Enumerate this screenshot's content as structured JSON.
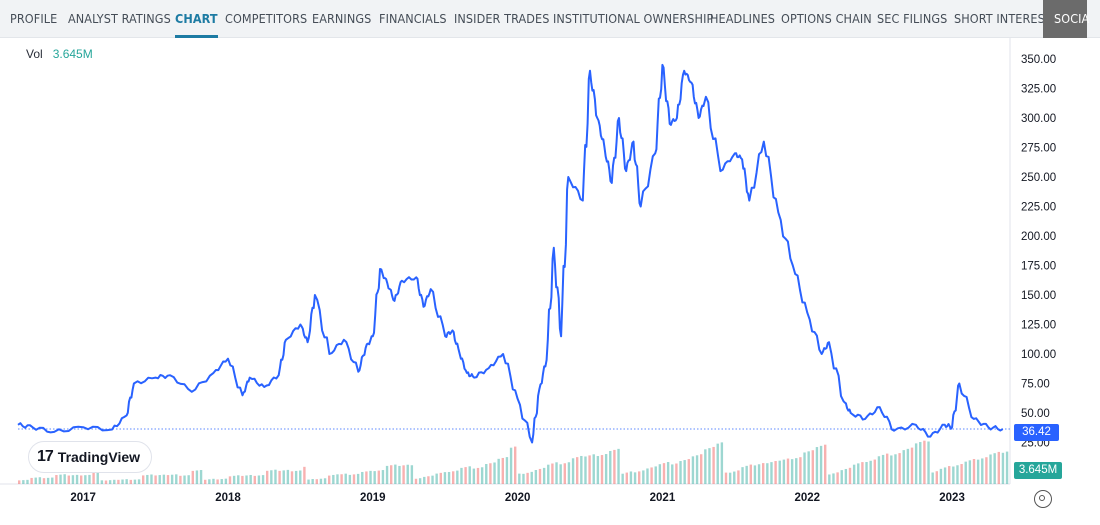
{
  "tabs": [
    {
      "label": "PROFILE",
      "active": false
    },
    {
      "label": "ANALYST RATINGS",
      "active": false
    },
    {
      "label": "CHART",
      "active": true
    },
    {
      "label": "COMPETITORS",
      "active": false
    },
    {
      "label": "EARNINGS",
      "active": false
    },
    {
      "label": "FINANCIALS",
      "active": false
    },
    {
      "label": "INSIDER TRADES",
      "active": false
    },
    {
      "label": "INSTITUTIONAL OWNERSHIP",
      "active": false
    },
    {
      "label": "HEADLINES",
      "active": false
    },
    {
      "label": "OPTIONS CHAIN",
      "active": false
    },
    {
      "label": "SEC FILINGS",
      "active": false
    },
    {
      "label": "SHORT INTEREST",
      "active": false
    },
    {
      "label": "SOCIA",
      "active": false
    }
  ],
  "legend": {
    "vol_label": "Vol",
    "vol_value": "3.645M"
  },
  "branding": {
    "logo_text": "TradingView",
    "logo_mark": "17"
  },
  "badges": {
    "last_price": "36.42",
    "last_volume": "3.645M"
  },
  "colors": {
    "line": "#2962ff",
    "vol_up": "#26a69a",
    "vol_down": "#ef5350",
    "price_badge": "#2962ff",
    "vol_badge": "#26a69a"
  },
  "chart_data": {
    "type": "line",
    "title": "",
    "xlabel": "",
    "ylabel": "",
    "ylim": [
      0,
      360
    ],
    "x_ticks": [
      "2017",
      "2018",
      "2019",
      "2020",
      "2021",
      "2022",
      "2023"
    ],
    "y_ticks": [
      "25.00",
      "50.00",
      "75.00",
      "100.00",
      "125.00",
      "150.00",
      "175.00",
      "200.00",
      "225.00",
      "250.00",
      "275.00",
      "300.00",
      "325.00",
      "350.00"
    ],
    "last_value": 36.42,
    "series": [
      {
        "x": [
          2016.55,
          2016.65,
          2016.8,
          2017.0,
          2017.2,
          2017.3,
          2017.35,
          2017.5,
          2017.6,
          2017.75,
          2017.9,
          2018.0,
          2018.1,
          2018.15,
          2018.25,
          2018.35,
          2018.4,
          2018.5,
          2018.55,
          2018.6,
          2018.7,
          2018.8,
          2018.9,
          2018.95,
          2019.0,
          2019.05,
          2019.1,
          2019.15,
          2019.2,
          2019.3,
          2019.35,
          2019.4,
          2019.5,
          2019.55,
          2019.6,
          2019.65,
          2019.7,
          2019.8,
          2019.9,
          2020.0,
          2020.1,
          2020.15,
          2020.2,
          2020.25,
          2020.3,
          2020.35,
          2020.45,
          2020.5,
          2020.55,
          2020.6,
          2020.65,
          2020.7,
          2020.75,
          2020.8,
          2020.85,
          2020.95,
          2021.0,
          2021.05,
          2021.1,
          2021.15,
          2021.2,
          2021.25,
          2021.3,
          2021.4,
          2021.5,
          2021.55,
          2021.6,
          2021.7,
          2021.8,
          2021.9,
          2022.0,
          2022.1,
          2022.15,
          2022.25,
          2022.3,
          2022.4,
          2022.5,
          2022.6,
          2022.75,
          2022.85,
          2022.95,
          2023.0,
          2023.05,
          2023.15,
          2023.25,
          2023.35
        ],
        "values": [
          40,
          38,
          34,
          38,
          36,
          48,
          75,
          80,
          82,
          68,
          84,
          96,
          65,
          80,
          72,
          82,
          112,
          125,
          110,
          150,
          100,
          112,
          85,
          105,
          115,
          172,
          160,
          145,
          162,
          165,
          140,
          155,
          115,
          120,
          100,
          84,
          80,
          88,
          100,
          62,
          25,
          70,
          95,
          190,
          115,
          250,
          230,
          340,
          300,
          275,
          245,
          300,
          255,
          280,
          225,
          270,
          345,
          295,
          300,
          340,
          330,
          300,
          318,
          255,
          270,
          265,
          230,
          280,
          220,
          175,
          135,
          100,
          110,
          60,
          50,
          45,
          55,
          35,
          40,
          30,
          40,
          38,
          75,
          45,
          38,
          36.42
        ]
      }
    ],
    "volume_series": {
      "name": "Vol",
      "values": [
        0.8,
        1.1,
        0.9,
        1.2,
        1.0,
        0.9,
        1.3,
        1.1,
        1.0,
        0.8,
        1.4,
        1.2,
        1.1,
        0.9,
        1.3,
        1.5,
        1.2,
        1.6,
        1.4,
        1.2,
        1.7,
        1.5,
        1.3,
        1.6,
        1.4,
        1.9,
        1.8,
        1.5,
        1.7,
        1.6,
        2.0,
        1.8,
        1.7,
        1.9,
        2.2,
        2.1,
        2.4,
        2.0,
        2.3,
        2.6,
        3.4,
        3.0,
        3.2,
        3.6,
        3.1,
        3.5,
        3.3,
        3.0,
        3.2,
        3.4,
        2.9,
        3.1,
        3.3,
        2.8,
        3.0,
        3.2,
        3.6,
        3.8,
        3.4,
        3.9,
        3.5,
        3.3,
        3.2,
        3.0,
        3.4,
        3.6,
        3.2,
        3.5,
        3.9,
        3.7,
        4.0,
        3.6,
        3.8,
        4.1,
        3.9,
        4.2,
        3.8,
        4.0,
        3.7,
        3.9,
        3.645
      ]
    }
  }
}
